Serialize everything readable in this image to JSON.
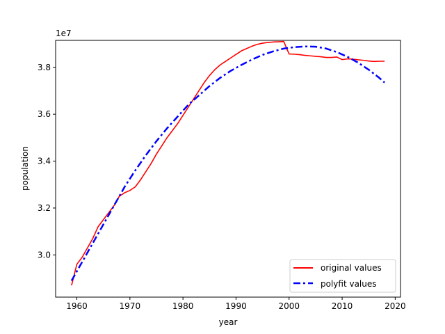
{
  "chart_data": {
    "type": "line",
    "title": "",
    "xlabel": "year",
    "ylabel": "population",
    "y_offset_text": "1e7",
    "xlim": [
      1956,
      2021
    ],
    "ylim": [
      28200000.0,
      39150000.0
    ],
    "x_ticks": [
      1960,
      1970,
      1980,
      1990,
      2000,
      2010,
      2020
    ],
    "x_tick_labels": [
      "1960",
      "1970",
      "1980",
      "1990",
      "2000",
      "2010",
      "2020"
    ],
    "y_ticks": [
      30000000.0,
      32000000.0,
      34000000.0,
      36000000.0,
      38000000.0
    ],
    "y_tick_labels": [
      "3.0",
      "3.2",
      "3.4",
      "3.6",
      "3.8"
    ],
    "grid": false,
    "legend_position": "lower-right",
    "series": [
      {
        "name": "original values",
        "color": "#ff0000",
        "style": "solid",
        "x": [
          1959,
          1960,
          1961,
          1962,
          1963,
          1964,
          1965,
          1966,
          1967,
          1968,
          1969,
          1970,
          1971,
          1972,
          1973,
          1974,
          1975,
          1976,
          1977,
          1978,
          1979,
          1980,
          1981,
          1982,
          1983,
          1984,
          1985,
          1986,
          1987,
          1988,
          1989,
          1990,
          1991,
          1992,
          1993,
          1994,
          1995,
          1996,
          1997,
          1998,
          1999,
          2000,
          2001,
          2002,
          2003,
          2004,
          2005,
          2006,
          2007,
          2008,
          2009,
          2010,
          2011,
          2012,
          2013,
          2014,
          2015,
          2016,
          2017,
          2018
        ],
        "y": [
          28700000.0,
          29600000.0,
          29900000.0,
          30300000.0,
          30700000.0,
          31200000.0,
          31500000.0,
          31800000.0,
          32100000.0,
          32500000.0,
          32650000.0,
          32750000.0,
          32900000.0,
          33200000.0,
          33550000.0,
          33900000.0,
          34300000.0,
          34650000.0,
          35000000.0,
          35300000.0,
          35600000.0,
          35950000.0,
          36300000.0,
          36650000.0,
          37000000.0,
          37350000.0,
          37650000.0,
          37900000.0,
          38100000.0,
          38250000.0,
          38400000.0,
          38550000.0,
          38700000.0,
          38800000.0,
          38900000.0,
          38980000.0,
          39030000.0,
          39060000.0,
          39080000.0,
          39090000.0,
          39100000.0,
          38570000.0,
          38560000.0,
          38540000.0,
          38510000.0,
          38490000.0,
          38470000.0,
          38450000.0,
          38420000.0,
          38420000.0,
          38440000.0,
          38330000.0,
          38360000.0,
          38350000.0,
          38320000.0,
          38300000.0,
          38270000.0,
          38250000.0,
          38260000.0,
          38260000.0
        ]
      },
      {
        "name": "polyfit  values",
        "color": "#0000ff",
        "style": "dashdot",
        "x": [
          1959,
          1961,
          1963,
          1965,
          1967,
          1969,
          1971,
          1973,
          1975,
          1977,
          1979,
          1981,
          1983,
          1985,
          1987,
          1989,
          1991,
          1993,
          1995,
          1997,
          1999,
          2001,
          2003,
          2005,
          2007,
          2009,
          2011,
          2013,
          2015,
          2017,
          2018
        ],
        "y": [
          28900000.0,
          29700000.0,
          30500000.0,
          31300000.0,
          32100000.0,
          32900000.0,
          33600000.0,
          34250000.0,
          34850000.0,
          35400000.0,
          35900000.0,
          36400000.0,
          36800000.0,
          37200000.0,
          37550000.0,
          37850000.0,
          38100000.0,
          38330000.0,
          38530000.0,
          38680000.0,
          38800000.0,
          38860000.0,
          38890000.0,
          38880000.0,
          38800000.0,
          38650000.0,
          38450000.0,
          38200000.0,
          37900000.0,
          37550000.0,
          37350000.0
        ]
      }
    ]
  }
}
